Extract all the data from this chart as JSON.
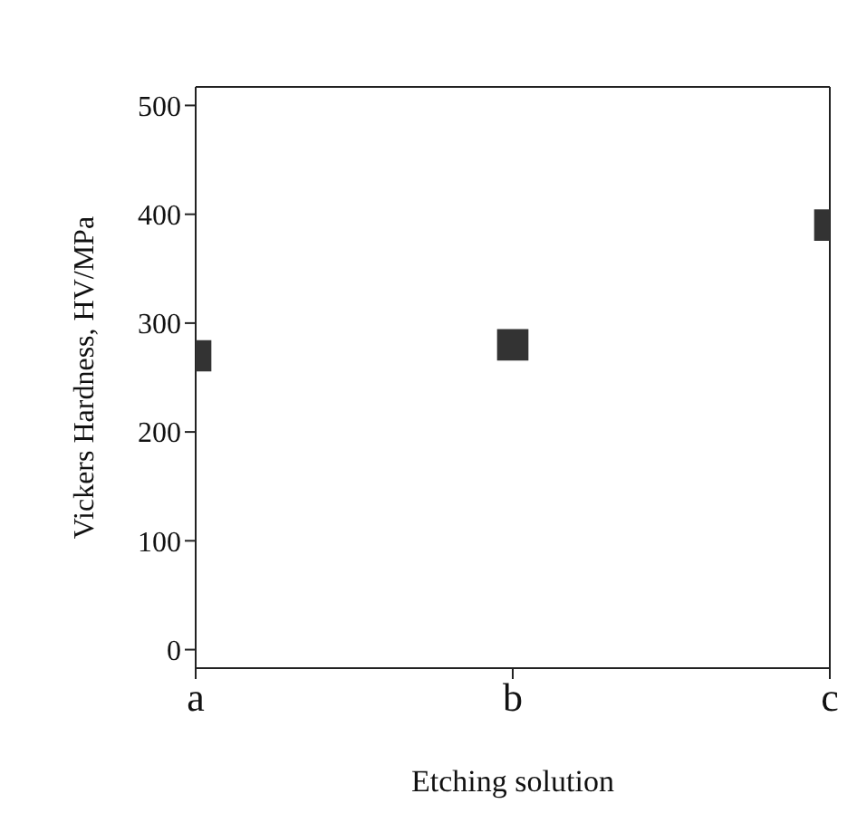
{
  "chart_data": {
    "type": "scatter",
    "xlabel": "Etching solution",
    "ylabel": "Vickers Hardness, HV/MPa",
    "categories": [
      "a",
      "b",
      "c"
    ],
    "series": [
      {
        "color": "#333333",
        "values": [
          270,
          280,
          390
        ]
      }
    ],
    "ylim": [
      -17,
      517
    ],
    "yticks": [
      0,
      100,
      200,
      300,
      400,
      500
    ],
    "marker": "square"
  }
}
